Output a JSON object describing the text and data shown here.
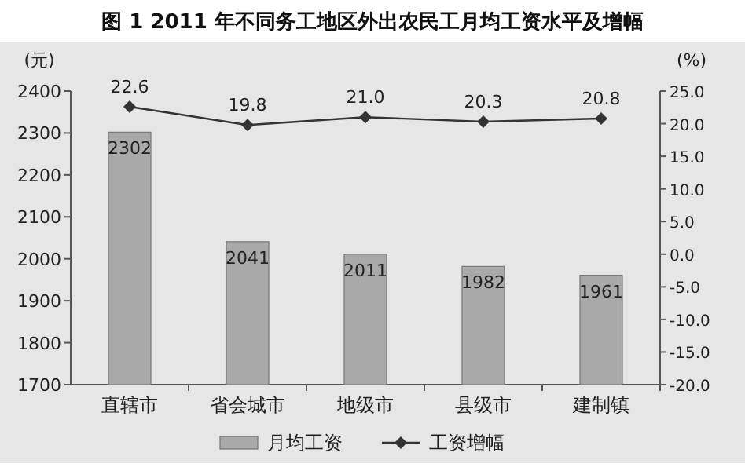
{
  "chart_data": {
    "type": "bar",
    "title": "图 1 2011 年不同务工地区外出农民工月均工资水平及增幅",
    "ylabel": "(元)",
    "y2label": "(%)",
    "categories": [
      "直辖市",
      "省会城市",
      "地级市",
      "县级市",
      "建制镇"
    ],
    "series": [
      {
        "name": "月均工资",
        "color": "#a9a9a9",
        "values": [
          2302,
          2041,
          2011,
          1982,
          1961
        ]
      },
      {
        "name": "工资增幅",
        "type": "line",
        "axis": "y2",
        "color": "#333333",
        "marker": "diamond",
        "values": [
          22.6,
          19.8,
          21.0,
          20.3,
          20.8
        ],
        "value_labels": [
          "22.6",
          "19.8",
          "21.0",
          "20.3",
          "20.8"
        ]
      }
    ],
    "ylim": [
      1700,
      2400
    ],
    "yticks": [
      1700,
      1800,
      1900,
      2000,
      2100,
      2200,
      2300,
      2400
    ],
    "y2lim": [
      -20,
      25
    ],
    "y2ticks": [
      {
        "value": -20,
        "label": "-20.0"
      },
      {
        "value": -15,
        "label": "-15.0"
      },
      {
        "value": -10,
        "label": "-10.0"
      },
      {
        "value": -5,
        "label": "-5.0"
      },
      {
        "value": 0,
        "label": "0.0"
      },
      {
        "value": 5,
        "label": "5.0"
      },
      {
        "value": 10,
        "label": "10.0"
      },
      {
        "value": 15,
        "label": "15.0"
      },
      {
        "value": 20,
        "label": "20.0"
      },
      {
        "value": 25,
        "label": "25.0"
      }
    ],
    "data_labels": true,
    "legend": "bottom",
    "grid": false
  }
}
